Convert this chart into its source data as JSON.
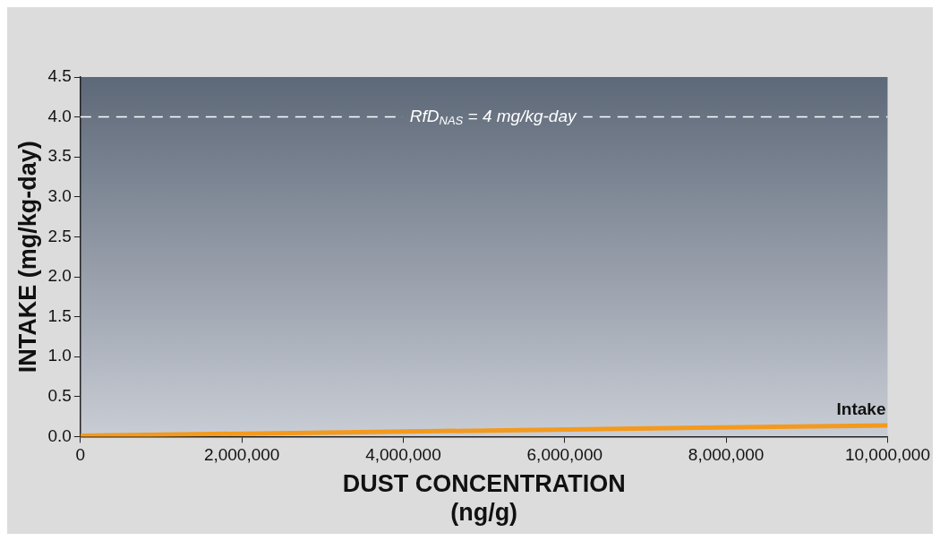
{
  "chart_data": {
    "type": "line",
    "xlabel": "DUST CONCENTRATION\n(ng/g)",
    "ylabel": "INTAKE (mg/kg-day)",
    "x": [
      0,
      10000000
    ],
    "series": [
      {
        "name": "Intake",
        "color": "#f39a1e",
        "values": [
          0.01,
          0.14
        ]
      }
    ],
    "xlim": [
      0,
      10000000
    ],
    "ylim": [
      0,
      4.5
    ],
    "xticks": [
      0,
      {
        "value": 2000000,
        "label": "2,000,000"
      },
      {
        "value": 4000000,
        "label": "4,000,000"
      },
      {
        "value": 6000000,
        "label": "6,000,000"
      },
      {
        "value": 8000000,
        "label": "8,000,000"
      },
      {
        "value": 10000000,
        "label": "10,000,000"
      }
    ],
    "yticks": [
      {
        "value": 0,
        "label": "0.0"
      },
      0.5,
      {
        "value": 1,
        "label": "1.0"
      },
      1.5,
      {
        "value": 2,
        "label": "2.0"
      },
      2.5,
      {
        "value": 3,
        "label": "3.0"
      },
      3.5,
      {
        "value": 4,
        "label": "4.0"
      },
      4.5
    ],
    "ref_lines": [
      {
        "axis": "y",
        "value": 4,
        "label": "RfD$_{NAS}$ = 4 mg/kg-day",
        "color": "#ffffff",
        "line_style": "dashed"
      }
    ],
    "grid": false,
    "legend": false,
    "marker": "none",
    "line_style": "solid"
  }
}
